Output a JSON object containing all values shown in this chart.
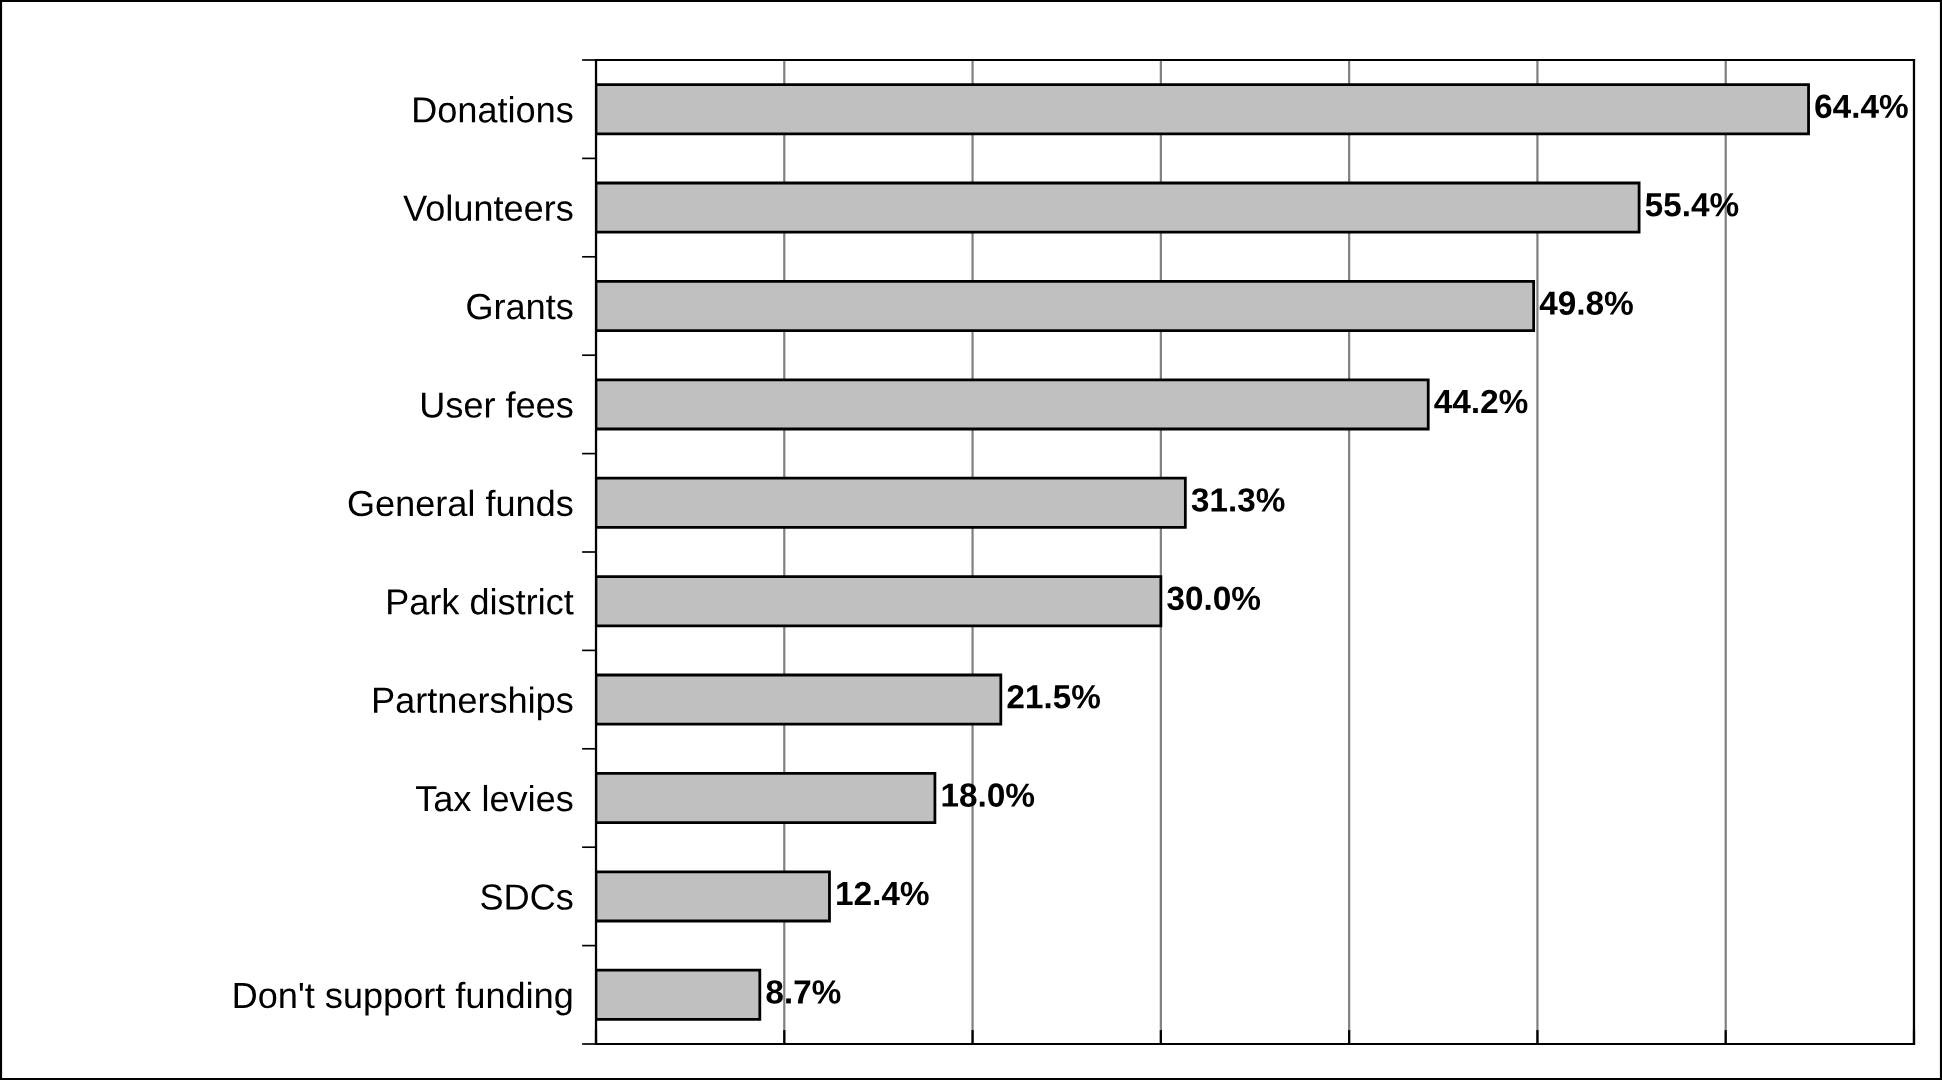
{
  "chart_data": {
    "type": "bar",
    "orientation": "horizontal",
    "categories": [
      "Donations",
      "Volunteers",
      "Grants",
      "User fees",
      "General funds",
      "Park district",
      "Partnerships",
      "Tax levies",
      "SDCs",
      "Don't support funding"
    ],
    "values": [
      64.4,
      55.4,
      49.8,
      44.2,
      31.3,
      30.0,
      21.5,
      18.0,
      12.4,
      8.7
    ],
    "value_labels": [
      "64.4%",
      "55.4%",
      "49.8%",
      "44.2%",
      "31.3%",
      "30.0%",
      "21.5%",
      "18.0%",
      "12.4%",
      "8.7%"
    ],
    "color": "#c0c0c0",
    "xlim": [
      0,
      70
    ],
    "xticks": [
      {
        "value": 0,
        "label": null
      },
      {
        "value": 10,
        "label": null
      },
      {
        "value": 20,
        "label": null
      },
      {
        "value": 30,
        "label": null
      },
      {
        "value": 40,
        "label": null
      },
      {
        "value": 50,
        "label": null
      },
      {
        "value": 60,
        "label": null
      },
      {
        "value": 70,
        "label": null
      }
    ],
    "grid": "x",
    "tick_labels": "y"
  }
}
